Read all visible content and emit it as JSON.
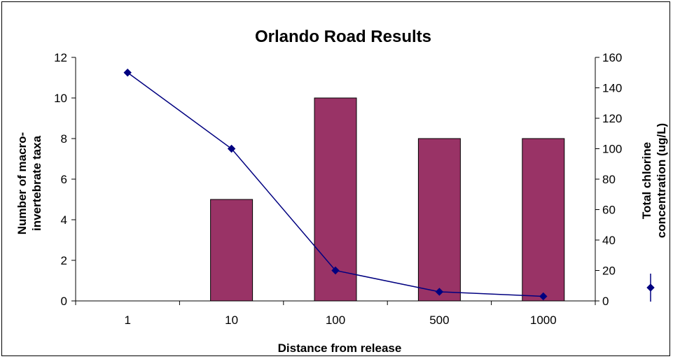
{
  "chart_data": {
    "type": "bar",
    "title": "Orlando Road Results",
    "xlabel": "Distance from release",
    "ylabel_lines": [
      "Number of macro-",
      "invertebrate taxa"
    ],
    "y2label_lines": [
      "Total chlorine",
      "concentration (ug/L)"
    ],
    "categories": [
      "1",
      "10",
      "100",
      "500",
      "1000"
    ],
    "ylim": [
      0,
      12
    ],
    "yticks": [
      0,
      2,
      4,
      6,
      8,
      10,
      12
    ],
    "y2lim": [
      0,
      160
    ],
    "y2ticks": [
      0,
      20,
      40,
      60,
      80,
      100,
      120,
      140,
      160
    ],
    "series": [
      {
        "values": [
          0,
          5,
          10,
          8,
          8
        ],
        "color": "#993366",
        "axis": "left",
        "kind": "bar"
      },
      {
        "values": [
          150,
          100,
          20,
          6,
          3
        ],
        "color": "#000080",
        "axis": "right",
        "kind": "line",
        "marker": "diamond"
      }
    ],
    "legend": {
      "position": "right",
      "marker": "diamond"
    }
  }
}
